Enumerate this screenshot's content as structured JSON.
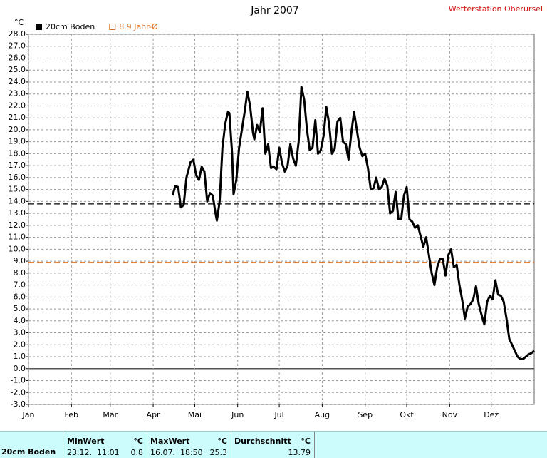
{
  "chart_data": {
    "type": "line",
    "title": "Jahr 2007",
    "station": "Wetterstation Oberursel",
    "y_unit": "°C",
    "xlim": [
      0,
      365
    ],
    "xticks": [
      {
        "value": 0,
        "label": "Jan"
      },
      {
        "value": 31,
        "label": "Feb"
      },
      {
        "value": 59,
        "label": "Mär"
      },
      {
        "value": 90,
        "label": "Apr"
      },
      {
        "value": 120,
        "label": "Mai"
      },
      {
        "value": 151,
        "label": "Jun"
      },
      {
        "value": 181,
        "label": "Jul"
      },
      {
        "value": 212,
        "label": "Aug"
      },
      {
        "value": 243,
        "label": "Sep"
      },
      {
        "value": 273,
        "label": "Okt"
      },
      {
        "value": 304,
        "label": "Nov"
      },
      {
        "value": 334,
        "label": "Dez"
      }
    ],
    "ylim": [
      -3,
      28
    ],
    "yticks": [
      {
        "value": 28,
        "label": "28.0"
      },
      {
        "value": 27,
        "label": "27.0"
      },
      {
        "value": 26,
        "label": "26.0"
      },
      {
        "value": 25,
        "label": "25.0"
      },
      {
        "value": 24,
        "label": "24.0"
      },
      {
        "value": 23,
        "label": "23.0"
      },
      {
        "value": 22,
        "label": "22.0"
      },
      {
        "value": 21,
        "label": "21.0"
      },
      {
        "value": 20,
        "label": "20.0"
      },
      {
        "value": 19,
        "label": "19.0"
      },
      {
        "value": 18,
        "label": "18.0"
      },
      {
        "value": 17,
        "label": "17.0"
      },
      {
        "value": 16,
        "label": "16.0"
      },
      {
        "value": 15,
        "label": "15.0"
      },
      {
        "value": 14,
        "label": "14.0"
      },
      {
        "value": 13,
        "label": "13.0"
      },
      {
        "value": 12,
        "label": "12.0"
      },
      {
        "value": 11,
        "label": "11.0"
      },
      {
        "value": 10,
        "label": "10.0"
      },
      {
        "value": 9,
        "label": "9.0"
      },
      {
        "value": 8,
        "label": "8.0"
      },
      {
        "value": 7,
        "label": "7.0"
      },
      {
        "value": 6,
        "label": "6.0"
      },
      {
        "value": 5,
        "label": "5.0"
      },
      {
        "value": 4,
        "label": "4.0"
      },
      {
        "value": 3,
        "label": "3.0"
      },
      {
        "value": 2,
        "label": "2.0"
      },
      {
        "value": 1,
        "label": "1.0"
      },
      {
        "value": 0,
        "label": "0.0"
      },
      {
        "value": -1,
        "label": "-1.0"
      },
      {
        "value": -2,
        "label": "-2.0"
      },
      {
        "value": -3,
        "label": "-3.0"
      }
    ],
    "grid": true,
    "series": [
      {
        "name": "20cm Boden",
        "color": "#000000",
        "x": [
          104,
          106,
          108,
          110,
          112,
          114,
          117,
          119,
          121,
          123,
          125,
          127,
          129,
          131,
          133,
          135,
          136,
          138,
          140,
          142,
          144,
          145,
          147,
          148,
          150,
          152,
          154,
          156,
          158,
          160,
          162,
          163,
          165,
          167,
          169,
          171,
          173,
          175,
          177,
          179,
          181,
          183,
          185,
          187,
          189,
          191,
          193,
          195,
          197,
          199,
          201,
          203,
          205,
          207,
          209,
          211,
          213,
          215,
          217,
          219,
          221,
          223,
          225,
          227,
          229,
          231,
          233,
          235,
          237,
          239,
          241,
          243,
          245,
          247,
          249,
          251,
          253,
          255,
          257,
          259,
          261,
          263,
          265,
          267,
          269,
          271,
          273,
          275,
          277,
          279,
          281,
          283,
          285,
          287,
          289,
          291,
          293,
          295,
          297,
          299,
          301,
          303,
          305,
          307,
          309,
          311,
          313,
          315,
          317,
          319,
          321,
          323,
          325,
          327,
          329,
          331,
          333,
          335,
          337,
          339,
          341,
          343,
          345,
          347,
          349,
          351,
          353,
          355,
          357,
          359,
          361,
          363,
          365
        ],
        "values": [
          14.5,
          15.3,
          15.2,
          13.5,
          13.7,
          16.0,
          17.3,
          17.5,
          16.2,
          15.8,
          16.9,
          16.5,
          14.0,
          14.7,
          14.5,
          13.0,
          12.4,
          14.0,
          18.5,
          20.5,
          21.5,
          21.4,
          18.0,
          14.6,
          15.8,
          18.5,
          20.0,
          21.5,
          23.2,
          22.0,
          19.8,
          19.2,
          20.4,
          19.8,
          21.8,
          18.0,
          18.8,
          16.8,
          16.9,
          16.7,
          18.5,
          17.2,
          16.5,
          17.0,
          18.8,
          17.6,
          17.0,
          19.0,
          23.6,
          22.5,
          20.0,
          18.3,
          18.5,
          20.8,
          18.0,
          18.3,
          19.5,
          21.9,
          20.5,
          18.0,
          18.4,
          20.7,
          21.0,
          19.0,
          18.8,
          17.5,
          19.7,
          21.5,
          20.0,
          18.5,
          17.8,
          18.0,
          16.8,
          15.0,
          15.1,
          16.0,
          15.0,
          15.2,
          15.9,
          15.3,
          13.0,
          13.2,
          14.8,
          12.5,
          12.5,
          14.5,
          15.2,
          12.5,
          12.3,
          11.8,
          12.0,
          11.1,
          10.2,
          11.0,
          9.5,
          8.0,
          7.0,
          8.5,
          9.2,
          9.2,
          7.8,
          9.5,
          10.0,
          8.5,
          8.7,
          7.0,
          5.8,
          4.2,
          5.2,
          5.4,
          5.8,
          6.9,
          5.4,
          4.5,
          3.7,
          5.6,
          6.1,
          5.8,
          7.4,
          6.2,
          6.1,
          5.6,
          4.2,
          2.5,
          2.0,
          1.5,
          1.0,
          0.8,
          0.8,
          1.0,
          1.2,
          1.3,
          1.5
        ]
      }
    ],
    "reference_lines": [
      {
        "name": "8.9 Jahr-Ø",
        "value": 8.9,
        "color": "#e07020"
      },
      {
        "value": 13.79,
        "color": "#000000"
      }
    ]
  },
  "table": {
    "row_label": "20cm Boden",
    "groups": [
      {
        "header": "MinWert",
        "unit": "°C",
        "time": "23.12.  11:01",
        "value": "0.8"
      },
      {
        "header": "MaxWert",
        "unit": "°C",
        "time": "16.07.  18:50",
        "value": "25.3"
      },
      {
        "header": "Durchschnitt",
        "unit": "°C",
        "time": null,
        "value": "13.79"
      }
    ]
  }
}
